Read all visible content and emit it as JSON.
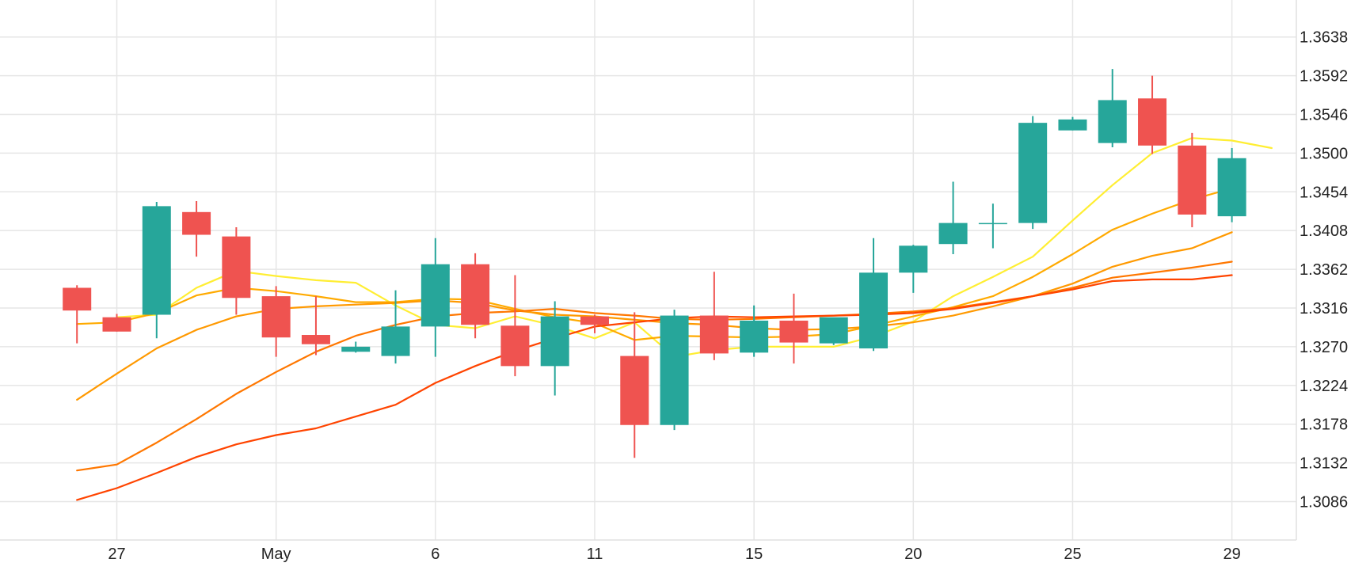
{
  "chart_data": {
    "type": "candlestick",
    "title": "",
    "xlabel": "",
    "ylabel": "",
    "grid": true,
    "ylim": [
      1.304,
      1.3684
    ],
    "y_ticks": [
      "1.3086",
      "1.3132",
      "1.3178",
      "1.3224",
      "1.3270",
      "1.3316",
      "1.3362",
      "1.3408",
      "1.3454",
      "1.3500",
      "1.3546",
      "1.3592",
      "1.3638"
    ],
    "x_ticks": [
      {
        "label": "27",
        "day": 27
      },
      {
        "label": "May",
        "day": 31
      },
      {
        "label": "6",
        "day": 35
      },
      {
        "label": "11",
        "day": 39
      },
      {
        "label": "15",
        "day": 43
      },
      {
        "label": "20",
        "day": 47
      },
      {
        "label": "25",
        "day": 51
      },
      {
        "label": "29",
        "day": 55
      }
    ],
    "up_color": "#26a69a",
    "down_color": "#ef5350",
    "candles": [
      {
        "day": 26,
        "open": 1.334,
        "high": 1.3343,
        "low": 1.3274,
        "close": 1.3313
      },
      {
        "day": 27,
        "open": 1.3305,
        "high": 1.3309,
        "low": 1.3288,
        "close": 1.3288
      },
      {
        "day": 28,
        "open": 1.3308,
        "high": 1.3442,
        "low": 1.328,
        "close": 1.3437
      },
      {
        "day": 29,
        "open": 1.343,
        "high": 1.3443,
        "low": 1.3377,
        "close": 1.3403
      },
      {
        "day": 30,
        "open": 1.3401,
        "high": 1.3412,
        "low": 1.3308,
        "close": 1.3328
      },
      {
        "day": 31,
        "open": 1.333,
        "high": 1.3342,
        "low": 1.3258,
        "close": 1.3281
      },
      {
        "day": 32,
        "open": 1.3284,
        "high": 1.333,
        "low": 1.326,
        "close": 1.3273
      },
      {
        "day": 33,
        "open": 1.3264,
        "high": 1.3276,
        "low": 1.3263,
        "close": 1.327
      },
      {
        "day": 34,
        "open": 1.3259,
        "high": 1.3337,
        "low": 1.325,
        "close": 1.3294
      },
      {
        "day": 35,
        "open": 1.3294,
        "high": 1.3399,
        "low": 1.3258,
        "close": 1.3368
      },
      {
        "day": 36,
        "open": 1.3368,
        "high": 1.3381,
        "low": 1.328,
        "close": 1.3296
      },
      {
        "day": 37,
        "open": 1.3295,
        "high": 1.3355,
        "low": 1.3235,
        "close": 1.3247
      },
      {
        "day": 38,
        "open": 1.3247,
        "high": 1.3324,
        "low": 1.3212,
        "close": 1.3306
      },
      {
        "day": 39,
        "open": 1.3306,
        "high": 1.3308,
        "low": 1.3286,
        "close": 1.3296
      },
      {
        "day": 40,
        "open": 1.3259,
        "high": 1.3311,
        "low": 1.3138,
        "close": 1.3177
      },
      {
        "day": 41,
        "open": 1.3177,
        "high": 1.3314,
        "low": 1.3171,
        "close": 1.3307
      },
      {
        "day": 42,
        "open": 1.3307,
        "high": 1.3359,
        "low": 1.3254,
        "close": 1.3262
      },
      {
        "day": 43,
        "open": 1.3263,
        "high": 1.3319,
        "low": 1.3258,
        "close": 1.3301
      },
      {
        "day": 44,
        "open": 1.3301,
        "high": 1.3333,
        "low": 1.325,
        "close": 1.3275
      },
      {
        "day": 45,
        "open": 1.3274,
        "high": 1.3304,
        "low": 1.3272,
        "close": 1.3305
      },
      {
        "day": 46,
        "open": 1.3268,
        "high": 1.3399,
        "low": 1.3265,
        "close": 1.3358
      },
      {
        "day": 47,
        "open": 1.3358,
        "high": 1.3391,
        "low": 1.3334,
        "close": 1.339
      },
      {
        "day": 48,
        "open": 1.3392,
        "high": 1.3466,
        "low": 1.338,
        "close": 1.3417
      },
      {
        "day": 49,
        "open": 1.3417,
        "high": 1.344,
        "low": 1.3387,
        "close": 1.3417
      },
      {
        "day": 50,
        "open": 1.3417,
        "high": 1.3544,
        "low": 1.341,
        "close": 1.3536
      },
      {
        "day": 51,
        "open": 1.3527,
        "high": 1.3543,
        "low": 1.3527,
        "close": 1.354
      },
      {
        "day": 52,
        "open": 1.3512,
        "high": 1.36,
        "low": 1.3507,
        "close": 1.3563
      },
      {
        "day": 53,
        "open": 1.3565,
        "high": 1.3592,
        "low": 1.3499,
        "close": 1.3509
      },
      {
        "day": 54,
        "open": 1.3509,
        "high": 1.3524,
        "low": 1.3412,
        "close": 1.3427
      },
      {
        "day": 55,
        "open": 1.3425,
        "high": 1.3506,
        "low": 1.3418,
        "close": 1.3494
      }
    ],
    "series": [
      {
        "color": "#ffee33",
        "from_day": 27,
        "values": [
          1.3305,
          1.3308,
          1.334,
          1.336,
          1.3354,
          1.3349,
          1.3346,
          1.3319,
          1.3296,
          1.3292,
          1.3306,
          1.3295,
          1.328,
          1.3299,
          1.3258,
          1.3266,
          1.327,
          1.327,
          1.327,
          1.3282,
          1.33,
          1.333,
          1.3353,
          1.3377,
          1.342,
          1.3462,
          1.35,
          1.3518,
          1.3515,
          1.3506
        ]
      },
      {
        "color": "#ffaa00",
        "from_day": 26,
        "values": [
          1.3297,
          1.3299,
          1.331,
          1.3331,
          1.334,
          1.3336,
          1.333,
          1.3323,
          1.3323,
          1.3327,
          1.3326,
          1.3315,
          1.3305,
          1.3298,
          1.3278,
          1.3283,
          1.3282,
          1.3281,
          1.3282,
          1.3285,
          1.3295,
          1.3306,
          1.3317,
          1.333,
          1.3353,
          1.338,
          1.3409,
          1.3428,
          1.3445,
          1.3458
        ]
      },
      {
        "color": "#ff9900",
        "from_day": 26,
        "values": [
          1.3207,
          1.3238,
          1.3268,
          1.329,
          1.3306,
          1.3315,
          1.3318,
          1.332,
          1.3322,
          1.3325,
          1.3322,
          1.3313,
          1.3308,
          1.3306,
          1.3302,
          1.3298,
          1.3296,
          1.3292,
          1.329,
          1.3291,
          1.3294,
          1.3299,
          1.3307,
          1.3318,
          1.333,
          1.3345,
          1.3365,
          1.3378,
          1.3387,
          1.3406
        ]
      },
      {
        "color": "#ff7700",
        "from_day": 26,
        "values": [
          1.3123,
          1.313,
          1.3156,
          1.3184,
          1.3214,
          1.324,
          1.3264,
          1.3283,
          1.3296,
          1.3306,
          1.331,
          1.3312,
          1.3315,
          1.331,
          1.3307,
          1.3303,
          1.3302,
          1.3303,
          1.3305,
          1.3307,
          1.3309,
          1.3312,
          1.3316,
          1.3323,
          1.333,
          1.334,
          1.3352,
          1.3358,
          1.3364,
          1.3371
        ]
      },
      {
        "color": "#ff4400",
        "from_day": 26,
        "values": [
          1.3088,
          1.3102,
          1.312,
          1.3139,
          1.3154,
          1.3165,
          1.3173,
          1.3187,
          1.3201,
          1.3227,
          1.3247,
          1.3265,
          1.328,
          1.3294,
          1.3299,
          1.3304,
          1.3306,
          1.3305,
          1.3306,
          1.3307,
          1.3308,
          1.331,
          1.3315,
          1.3322,
          1.333,
          1.3338,
          1.3348,
          1.335,
          1.335,
          1.3355
        ]
      }
    ]
  }
}
